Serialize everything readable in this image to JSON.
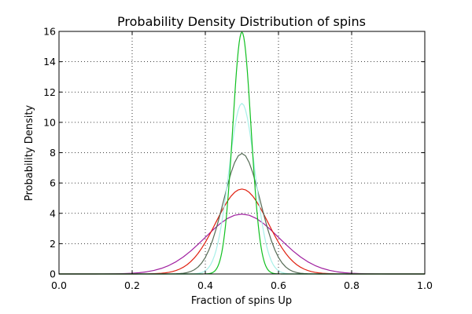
{
  "chart_data": {
    "type": "line",
    "title": "Probability Density Distribution of spins",
    "xlabel": "Fraction of spins Up",
    "ylabel": "Probability Density",
    "xlim": [
      0.0,
      1.0
    ],
    "ylim": [
      0,
      16
    ],
    "xticks": [
      0.0,
      0.2,
      0.4,
      0.6,
      0.8,
      1.0
    ],
    "xtick_labels": [
      "0.0",
      "0.2",
      "0.4",
      "0.6",
      "0.8",
      "1.0"
    ],
    "yticks": [
      0,
      2,
      4,
      6,
      8,
      10,
      12,
      14,
      16
    ],
    "ytick_labels": [
      "0",
      "2",
      "4",
      "6",
      "8",
      "10",
      "12",
      "14",
      "16"
    ],
    "grid": true,
    "legend": "none",
    "distribution": "gaussian density centered at 0.5",
    "series": [
      {
        "color": "#a020a0",
        "peak": 3.95,
        "std": 0.101,
        "x_spacing": 0.02
      },
      {
        "color": "#e02010",
        "peak": 5.6,
        "std": 0.0712,
        "x_spacing": 0.01
      },
      {
        "color": "#556b55",
        "peak": 7.95,
        "std": 0.0502,
        "x_spacing": 0.01
      },
      {
        "color": "#a8f0e8",
        "peak": 11.25,
        "std": 0.0355,
        "x_spacing": 0.005
      },
      {
        "color": "#10c020",
        "peak": 15.95,
        "std": 0.025,
        "x_spacing": 0.0025
      }
    ]
  }
}
